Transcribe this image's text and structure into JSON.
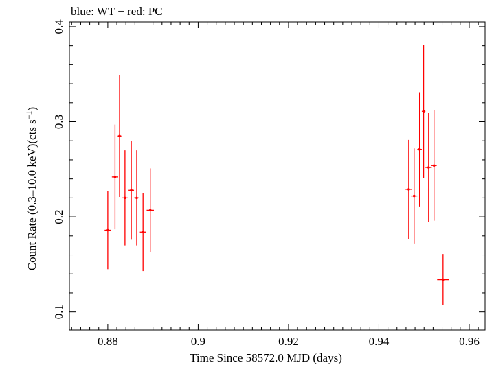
{
  "chart_data": {
    "type": "scatter",
    "title": "blue: WT − red: PC",
    "xlabel": "Time Since 58572.0 MJD (days)",
    "ylabel_main": "Count Rate (0.3–10.0 keV)(cts s",
    "ylabel_sup": "−1",
    "ylabel_end": ")",
    "xlim": [
      0.8715,
      0.9635
    ],
    "ylim": [
      0.081,
      0.405
    ],
    "x_ticks": [
      0.88,
      0.9,
      0.92,
      0.94,
      0.96
    ],
    "x_tick_labels": [
      "0.88",
      "0.9",
      "0.92",
      "0.94",
      "0.96"
    ],
    "y_ticks": [
      0.1,
      0.2,
      0.3,
      0.4
    ],
    "y_tick_labels": [
      "0.1",
      "0.2",
      "0.3",
      "0.4"
    ],
    "grid": false,
    "series": [
      {
        "color": "#ff0000",
        "points": [
          {
            "x": 0.88,
            "xerr": 0.0007,
            "y": 0.186,
            "yerr_low": 0.041,
            "yerr_high": 0.041
          },
          {
            "x": 0.8816,
            "xerr": 0.0007,
            "y": 0.242,
            "yerr_low": 0.055,
            "yerr_high": 0.055
          },
          {
            "x": 0.8826,
            "xerr": 0.0004,
            "y": 0.285,
            "yerr_low": 0.064,
            "yerr_high": 0.064
          },
          {
            "x": 0.8838,
            "xerr": 0.0006,
            "y": 0.22,
            "yerr_low": 0.05,
            "yerr_high": 0.05
          },
          {
            "x": 0.8852,
            "xerr": 0.0006,
            "y": 0.228,
            "yerr_low": 0.052,
            "yerr_high": 0.052
          },
          {
            "x": 0.8864,
            "xerr": 0.0006,
            "y": 0.22,
            "yerr_low": 0.05,
            "yerr_high": 0.05
          },
          {
            "x": 0.8878,
            "xerr": 0.0007,
            "y": 0.184,
            "yerr_low": 0.041,
            "yerr_high": 0.041
          },
          {
            "x": 0.8894,
            "xerr": 0.0008,
            "y": 0.207,
            "yerr_low": 0.044,
            "yerr_high": 0.044
          },
          {
            "x": 0.9466,
            "xerr": 0.0007,
            "y": 0.229,
            "yerr_low": 0.052,
            "yerr_high": 0.052
          },
          {
            "x": 0.9478,
            "xerr": 0.0007,
            "y": 0.222,
            "yerr_low": 0.05,
            "yerr_high": 0.05
          },
          {
            "x": 0.949,
            "xerr": 0.0005,
            "y": 0.271,
            "yerr_low": 0.06,
            "yerr_high": 0.06
          },
          {
            "x": 0.9499,
            "xerr": 0.0004,
            "y": 0.311,
            "yerr_low": 0.07,
            "yerr_high": 0.07
          },
          {
            "x": 0.951,
            "xerr": 0.0007,
            "y": 0.252,
            "yerr_low": 0.057,
            "yerr_high": 0.057
          },
          {
            "x": 0.9522,
            "xerr": 0.0006,
            "y": 0.254,
            "yerr_low": 0.058,
            "yerr_high": 0.058
          },
          {
            "x": 0.9542,
            "xerr": 0.0013,
            "y": 0.134,
            "yerr_low": 0.027,
            "yerr_high": 0.027
          }
        ]
      }
    ]
  }
}
